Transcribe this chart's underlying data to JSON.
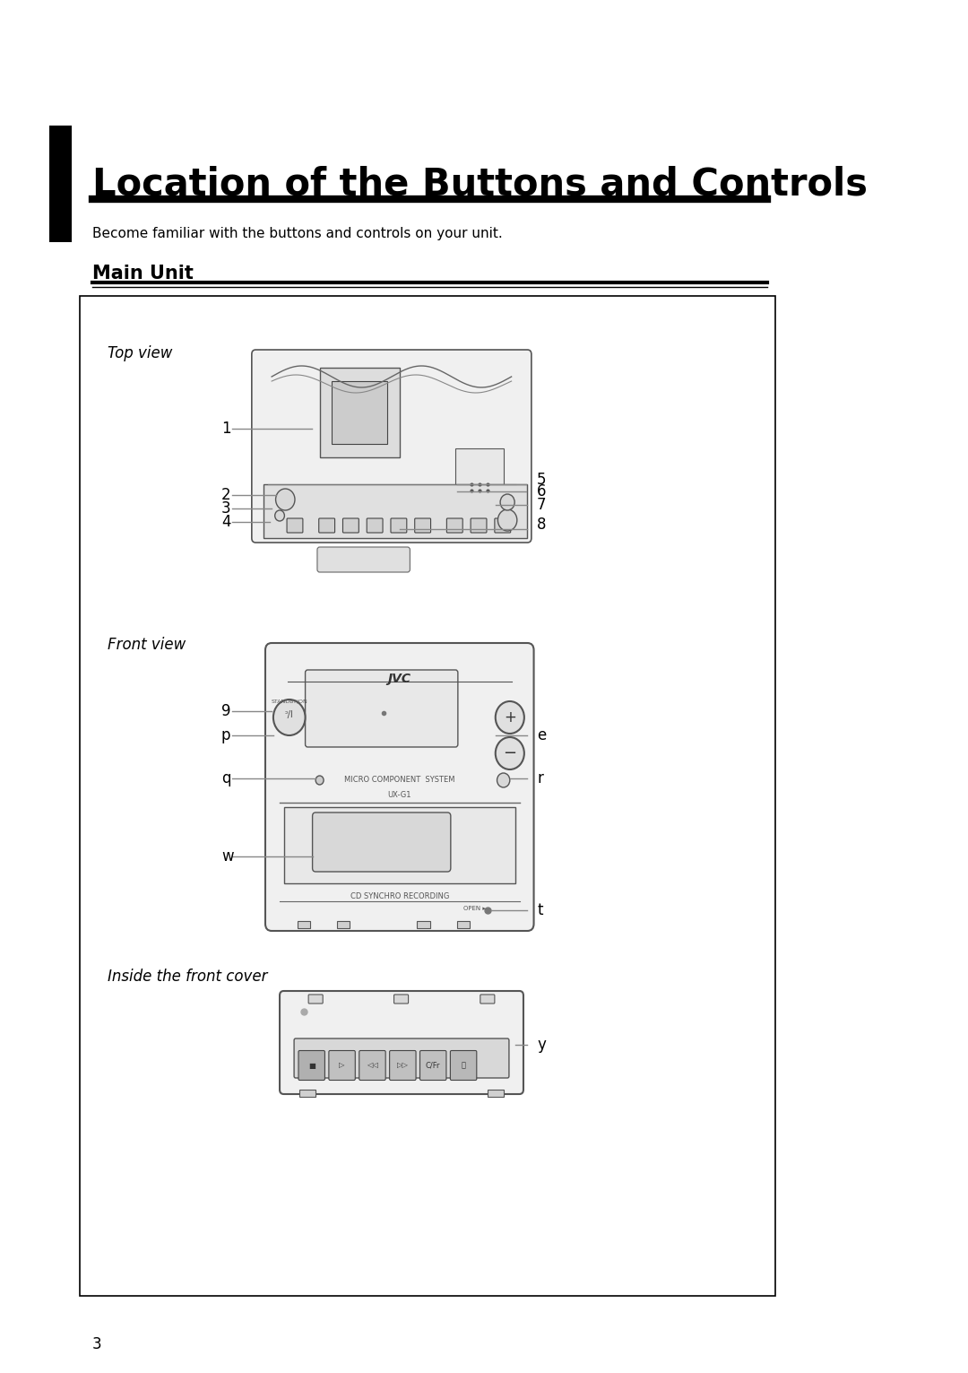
{
  "title": "Location of the Buttons and Controls",
  "subtitle": "Become familiar with the buttons and controls on your unit.",
  "section": "Main Unit",
  "bg_color": "#ffffff",
  "text_color": "#000000",
  "page_number": "3",
  "top_view_label": "Top view",
  "front_view_label": "Front view",
  "inside_label": "Inside the front cover",
  "top_labels_left": [
    "1",
    "2",
    "3",
    "4"
  ],
  "top_labels_right": [
    "5",
    "6",
    "7",
    "8"
  ],
  "front_labels_left": [
    "9",
    "p",
    "q",
    "w"
  ],
  "front_labels_right": [
    "e",
    "r",
    "t"
  ],
  "inside_labels_right": [
    "y"
  ]
}
